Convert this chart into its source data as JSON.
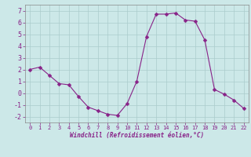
{
  "x": [
    0,
    1,
    2,
    3,
    4,
    5,
    6,
    7,
    8,
    9,
    10,
    11,
    12,
    13,
    14,
    15,
    16,
    17,
    18,
    19,
    20,
    21,
    22
  ],
  "y": [
    2.0,
    2.2,
    1.5,
    0.8,
    0.7,
    -0.3,
    -1.2,
    -1.5,
    -1.8,
    -1.9,
    -0.9,
    1.0,
    4.8,
    6.7,
    6.7,
    6.8,
    6.2,
    6.1,
    4.5,
    0.3,
    -0.1,
    -0.6,
    -1.3
  ],
  "line_color": "#882288",
  "marker": "D",
  "marker_size": 2.5,
  "background_color": "#cce8e8",
  "grid_color": "#aacccc",
  "xlabel": "Windchill (Refroidissement éolien,°C)",
  "xlabel_color": "#882288",
  "tick_color": "#882288",
  "xlim": [
    -0.5,
    22.5
  ],
  "ylim": [
    -2.5,
    7.5
  ],
  "yticks": [
    -2,
    -1,
    0,
    1,
    2,
    3,
    4,
    5,
    6,
    7
  ],
  "xticks": [
    0,
    1,
    2,
    3,
    4,
    5,
    6,
    7,
    8,
    9,
    10,
    11,
    12,
    13,
    14,
    15,
    16,
    17,
    18,
    19,
    20,
    21,
    22
  ]
}
